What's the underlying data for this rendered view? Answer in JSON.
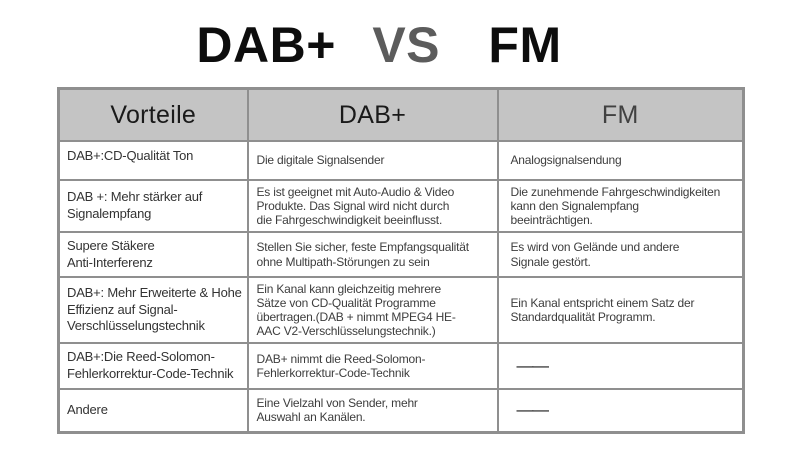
{
  "title": {
    "part_dab": "DAB+",
    "part_vs": "VS",
    "part_fm": "FM"
  },
  "table": {
    "headers": [
      "Vorteile",
      "DAB+",
      "FM"
    ],
    "rows": [
      [
        "DAB+:CD-Qualität Ton",
        "Die digitale Signalsender",
        "Analogsignalsendung"
      ],
      [
        "DAB +: Mehr stärker auf\nSignalempfang",
        "Es ist geeignet mit Auto-Audio & Video\nProdukte. Das Signal wird nicht durch\ndie Fahrgeschwindigkeit beeinflusst.",
        "Die zunehmende Fahrgeschwindigkeiten\nkann den Signalempfang\nbeeinträchtigen."
      ],
      [
        "Supere Stäkere\nAnti-Interferenz",
        "Stellen Sie sicher, feste Empfangsqualität\nohne Multipath-Störungen zu sein",
        "Es wird von Gelände und andere\nSignale gestört."
      ],
      [
        "DAB+: Mehr Erweiterte & Hohe\nEffizienz auf Signal-\nVerschlüsselungstechnik",
        "Ein Kanal kann gleichzeitig mehrere\nSätze von CD-Qualität Programme\nübertragen.(DAB + nimmt MPEG4 HE-\nAAC V2-Verschlüsselungstechnik.)",
        "Ein Kanal entspricht einem Satz der\nStandardqualität Programm."
      ],
      [
        "DAB+:Die Reed-Solomon-\nFehlerkorrektur-Code-Technik",
        "DAB+ nimmt die Reed-Solomon-\nFehlerkorrektur-Code-Technik",
        "——"
      ],
      [
        "Andere",
        "Eine Vielzahl von Sender, mehr\nAuswahl an Kanälen.",
        "——"
      ]
    ]
  },
  "colors": {
    "header_background": "#c4c4c4",
    "table_border": "#8f8f8f",
    "title_text": "#0d0d0d",
    "title_vs_text": "#5c5c5c",
    "fm_header_text": "#414141",
    "body_text": "#3d3d3d"
  }
}
